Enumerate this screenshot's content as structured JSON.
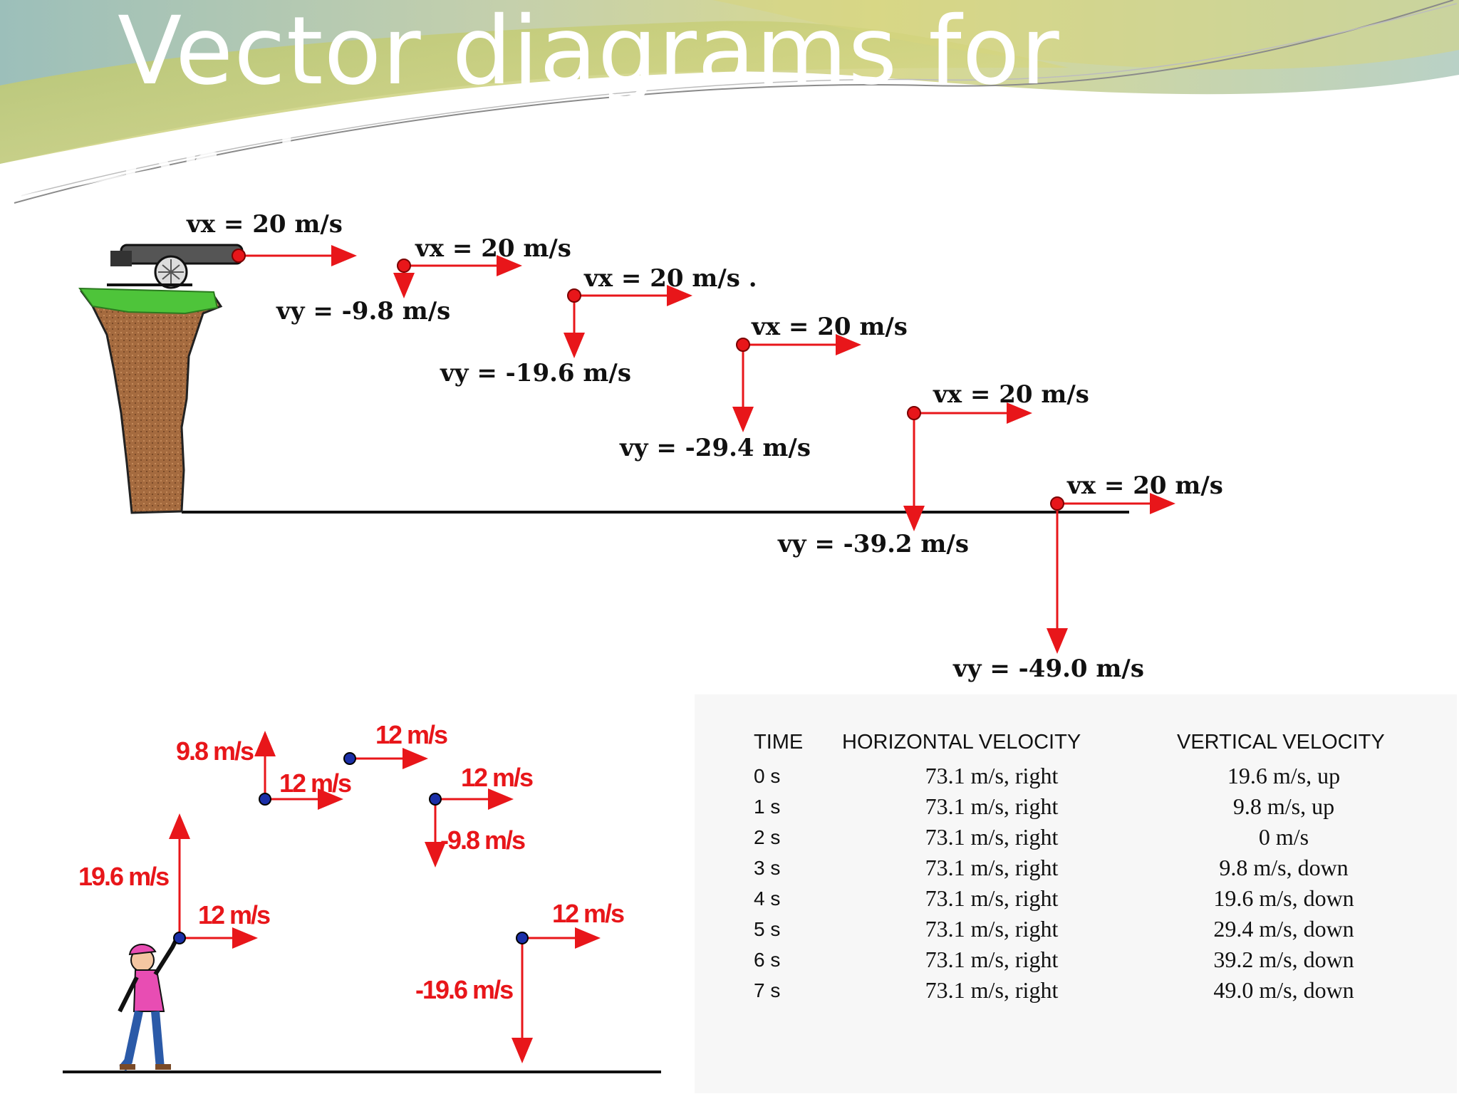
{
  "slide": {
    "title_line1": "Vector diagrams for",
    "title_line2": "projectile motion",
    "colors": {
      "header_green": "#c9cc6f",
      "header_teal": "#a8c8c4",
      "arrow_red": "#e8161a",
      "ball_blue": "#1b2fa8"
    }
  },
  "cliff_diagram": {
    "horizontal_labels": [
      "vx = 20 m/s",
      "vx = 20 m/s",
      "vx = 20 m/s .",
      "vx = 20 m/s",
      "vx = 20 m/s",
      "vx = 20 m/s"
    ],
    "vertical_labels": [
      "vy = -9.8 m/s",
      "vy = -19.6 m/s",
      "vy = -29.4 m/s",
      "vy = -39.2 m/s",
      "vy = -49.0 m/s"
    ],
    "icons": [
      "cannon-icon",
      "cliff-icon"
    ]
  },
  "ball_diagram": {
    "horizontal_labels": [
      "12 m/s",
      "12 m/s",
      "12 m/s",
      "12 m/s",
      "12 m/s"
    ],
    "vertical_labels": [
      "19.6 m/s",
      "9.8 m/s",
      "-9.8 m/s",
      "-19.6 m/s"
    ],
    "icons": [
      "person-throwing-icon"
    ]
  },
  "velocity_table": {
    "headers": [
      "TIME",
      "HORIZONTAL VELOCITY",
      "VERTICAL VELOCITY"
    ],
    "rows": [
      {
        "time": "0 s",
        "horizontal": "73.1 m/s, right",
        "vertical": "19.6 m/s, up"
      },
      {
        "time": "1 s",
        "horizontal": "73.1 m/s, right",
        "vertical": "9.8 m/s, up"
      },
      {
        "time": "2 s",
        "horizontal": "73.1 m/s, right",
        "vertical": "0 m/s"
      },
      {
        "time": "3 s",
        "horizontal": "73.1 m/s, right",
        "vertical": "9.8 m/s, down"
      },
      {
        "time": "4 s",
        "horizontal": "73.1 m/s, right",
        "vertical": "19.6 m/s, down"
      },
      {
        "time": "5 s",
        "horizontal": "73.1 m/s, right",
        "vertical": "29.4 m/s, down"
      },
      {
        "time": "6 s",
        "horizontal": "73.1 m/s, right",
        "vertical": "39.2 m/s, down"
      },
      {
        "time": "7 s",
        "horizontal": "73.1 m/s, right",
        "vertical": "49.0 m/s, down"
      }
    ]
  }
}
